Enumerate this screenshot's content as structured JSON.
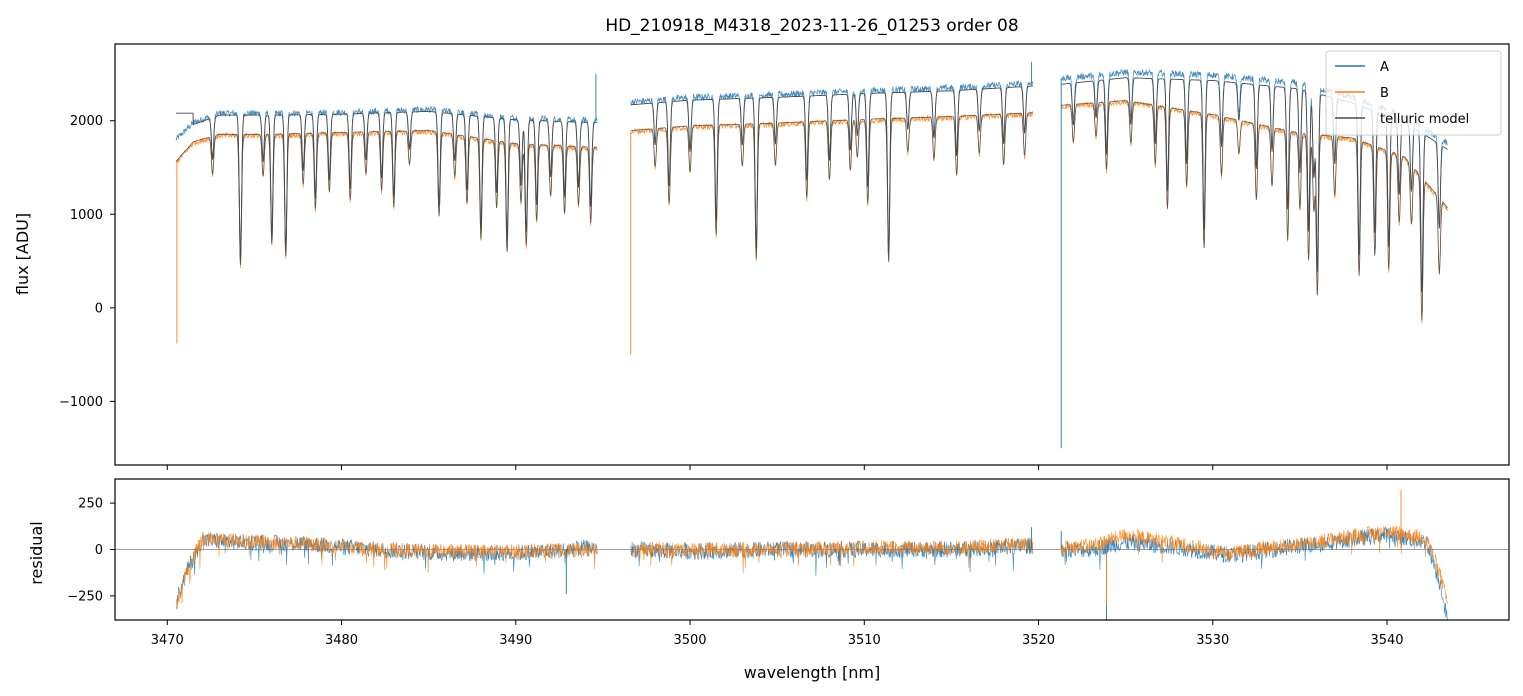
{
  "chart_data": [
    {
      "type": "line",
      "title": "HD_210918_M4318_2023-11-26_01253  order 08",
      "xlabel": "",
      "ylabel": "flux [ADU]",
      "xlim": [
        3467,
        3547
      ],
      "ylim": [
        -1680,
        2820
      ],
      "yticks": [
        -1000,
        0,
        1000,
        2000
      ],
      "yticks_labels": [
        "−1000",
        "0",
        "1000",
        "2000"
      ],
      "xticks": [
        3470,
        3480,
        3490,
        3500,
        3510,
        3520,
        3530,
        3540
      ],
      "segments": [
        [
          3470.5,
          3494.7
        ],
        [
          3496.6,
          3519.7
        ],
        [
          3521.3,
          3543.5
        ]
      ],
      "series": [
        {
          "name": "A",
          "color": "#1f77b4",
          "continuum": [
            [
              3470.5,
              1800
            ],
            [
              3471.5,
              1980
            ],
            [
              3473,
              2080
            ],
            [
              3476,
              2080
            ],
            [
              3480,
              2090
            ],
            [
              3485,
              2120
            ],
            [
              3490,
              2030
            ],
            [
              3494.6,
              2000
            ],
            [
              3496.6,
              2200
            ],
            [
              3500,
              2250
            ],
            [
              3505,
              2280
            ],
            [
              3510,
              2320
            ],
            [
              3515,
              2350
            ],
            [
              3519.6,
              2400
            ],
            [
              3521.3,
              2450
            ],
            [
              3525,
              2520
            ],
            [
              3530,
              2490
            ],
            [
              3535,
              2400
            ],
            [
              3538,
              2250
            ],
            [
              3541,
              2050
            ],
            [
              3543.5,
              1750
            ]
          ]
        },
        {
          "name": "B",
          "color": "#ff7f0e",
          "continuum": [
            [
              3470.5,
              1550
            ],
            [
              3471.5,
              1760
            ],
            [
              3473,
              1840
            ],
            [
              3476,
              1840
            ],
            [
              3480,
              1860
            ],
            [
              3485,
              1880
            ],
            [
              3490,
              1740
            ],
            [
              3494.6,
              1700
            ],
            [
              3496.6,
              1880
            ],
            [
              3500,
              1930
            ],
            [
              3505,
              1960
            ],
            [
              3510,
              2000
            ],
            [
              3515,
              2030
            ],
            [
              3519.6,
              2070
            ],
            [
              3521.3,
              2150
            ],
            [
              3525,
              2200
            ],
            [
              3530,
              2050
            ],
            [
              3535,
              1850
            ],
            [
              3538,
              1800
            ],
            [
              3541,
              1600
            ],
            [
              3543.5,
              1050
            ]
          ]
        },
        {
          "name": "telluric model",
          "color": "#4a4a4a"
        }
      ],
      "absorption_lines": [
        [
          3472.6,
          450
        ],
        [
          3474.2,
          1550
        ],
        [
          3475.5,
          500
        ],
        [
          3476.0,
          1300
        ],
        [
          3476.8,
          1450
        ],
        [
          3477.8,
          600
        ],
        [
          3478.5,
          900
        ],
        [
          3479.3,
          700
        ],
        [
          3480.5,
          800
        ],
        [
          3481.4,
          500
        ],
        [
          3482.3,
          700
        ],
        [
          3483.0,
          900
        ],
        [
          3483.9,
          400
        ],
        [
          3485.6,
          1000
        ],
        [
          3486.5,
          500
        ],
        [
          3487.2,
          800
        ],
        [
          3488.0,
          1200
        ],
        [
          3488.9,
          800
        ],
        [
          3489.5,
          1300
        ],
        [
          3490.3,
          700
        ],
        [
          3490.6,
          1200
        ],
        [
          3491.2,
          900
        ],
        [
          3492.0,
          600
        ],
        [
          3492.8,
          800
        ],
        [
          3493.6,
          700
        ],
        [
          3494.3,
          900
        ],
        [
          3498.0,
          450
        ],
        [
          3498.8,
          900
        ],
        [
          3500.0,
          550
        ],
        [
          3501.5,
          1300
        ],
        [
          3503.0,
          500
        ],
        [
          3503.8,
          1600
        ],
        [
          3504.9,
          500
        ],
        [
          3506.7,
          900
        ],
        [
          3508.0,
          700
        ],
        [
          3509.2,
          600
        ],
        [
          3509.6,
          450
        ],
        [
          3510.2,
          1000
        ],
        [
          3511.4,
          1700
        ],
        [
          3512.5,
          400
        ],
        [
          3514.0,
          500
        ],
        [
          3515.3,
          700
        ],
        [
          3516.6,
          450
        ],
        [
          3518.0,
          600
        ],
        [
          3519.2,
          500
        ],
        [
          3522.0,
          450
        ],
        [
          3523.3,
          400
        ],
        [
          3523.9,
          800
        ],
        [
          3525.3,
          500
        ],
        [
          3526.7,
          700
        ],
        [
          3527.4,
          1200
        ],
        [
          3528.5,
          900
        ],
        [
          3529.5,
          1600
        ],
        [
          3530.5,
          700
        ],
        [
          3531.5,
          400
        ],
        [
          3532.5,
          900
        ],
        [
          3533.4,
          700
        ],
        [
          3534.3,
          1300
        ],
        [
          3535.0,
          900
        ],
        [
          3535.5,
          1500
        ],
        [
          3535.8,
          900
        ],
        [
          3536.0,
          1900
        ],
        [
          3537.0,
          700
        ],
        [
          3538.4,
          1600
        ],
        [
          3539.3,
          1300
        ],
        [
          3540.1,
          1400
        ],
        [
          3540.7,
          800
        ],
        [
          3541.4,
          700
        ],
        [
          3542.0,
          1700
        ],
        [
          3543.0,
          900
        ]
      ],
      "spike_outliers": [
        [
          3494.6,
          "A",
          2500
        ],
        [
          3519.6,
          "A",
          2630
        ],
        [
          3521.3,
          "A",
          -1500
        ],
        [
          3496.6,
          "B",
          -500
        ],
        [
          3470.55,
          "B",
          -380
        ]
      ],
      "legend": {
        "entries": [
          "A",
          "B",
          "telluric model"
        ],
        "loc": "upper right"
      },
      "grid": false
    },
    {
      "type": "line",
      "title": "",
      "xlabel": "wavelength [nm]",
      "ylabel": "residual",
      "xlim": [
        3467,
        3547
      ],
      "ylim": [
        -380,
        380
      ],
      "yticks": [
        -250,
        0,
        250
      ],
      "yticks_labels": [
        "−250",
        "0",
        "250"
      ],
      "xticks": [
        3470,
        3480,
        3490,
        3500,
        3510,
        3520,
        3530,
        3540
      ],
      "xticks_labels": [
        "3470",
        "3480",
        "3490",
        "3500",
        "3510",
        "3520",
        "3530",
        "3540"
      ],
      "zero_line": true,
      "series": [
        {
          "name": "A",
          "color": "#1f77b4",
          "trend": [
            [
              3470.5,
              -280
            ],
            [
              3471.2,
              -100
            ],
            [
              3472,
              50
            ],
            [
              3474,
              40
            ],
            [
              3478,
              30
            ],
            [
              3482,
              0
            ],
            [
              3486,
              -20
            ],
            [
              3490,
              -20
            ],
            [
              3494.6,
              10
            ],
            [
              3496.6,
              0
            ],
            [
              3500,
              -10
            ],
            [
              3505,
              0
            ],
            [
              3510,
              0
            ],
            [
              3515,
              0
            ],
            [
              3519.6,
              20
            ],
            [
              3521.3,
              0
            ],
            [
              3523,
              0
            ],
            [
              3525,
              40
            ],
            [
              3528,
              10
            ],
            [
              3531,
              -30
            ],
            [
              3535,
              20
            ],
            [
              3540,
              80
            ],
            [
              3542.3,
              40
            ],
            [
              3543.1,
              -200
            ],
            [
              3543.5,
              -400
            ]
          ]
        },
        {
          "name": "B",
          "color": "#ff7f0e",
          "trend": [
            [
              3470.5,
              -300
            ],
            [
              3471.2,
              -100
            ],
            [
              3472,
              60
            ],
            [
              3474,
              50
            ],
            [
              3478,
              30
            ],
            [
              3482,
              0
            ],
            [
              3486,
              -10
            ],
            [
              3490,
              -10
            ],
            [
              3494.6,
              0
            ],
            [
              3496.6,
              0
            ],
            [
              3500,
              0
            ],
            [
              3505,
              0
            ],
            [
              3510,
              10
            ],
            [
              3515,
              10
            ],
            [
              3519.6,
              30
            ],
            [
              3521.3,
              10
            ],
            [
              3523,
              20
            ],
            [
              3525,
              80
            ],
            [
              3528,
              30
            ],
            [
              3531,
              -20
            ],
            [
              3535,
              30
            ],
            [
              3540,
              100
            ],
            [
              3542.3,
              60
            ],
            [
              3543.1,
              -150
            ],
            [
              3543.5,
              -300
            ]
          ]
        }
      ],
      "spikes": [
        [
          3492.9,
          "A",
          -240
        ],
        [
          3523.9,
          "A",
          -380
        ],
        [
          3523.9,
          "B",
          -300
        ],
        [
          3540.8,
          "B",
          320
        ],
        [
          3519.6,
          "A",
          120
        ],
        [
          3521.3,
          "A",
          100
        ]
      ]
    }
  ]
}
